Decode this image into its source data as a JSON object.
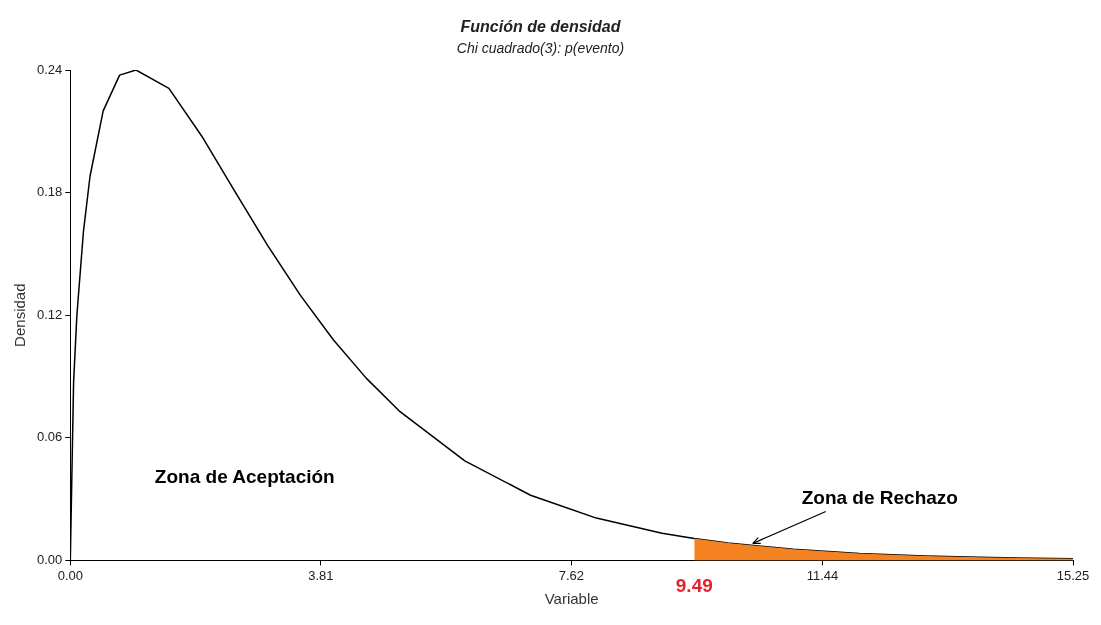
{
  "chart_data": {
    "type": "line",
    "title": "Función de densidad",
    "subtitle": "Chi cuadrado(3): p(evento)",
    "xlabel": "Variable",
    "ylabel": "Densidad",
    "xlim": [
      0,
      15.25
    ],
    "xticks": [
      {
        "value": 0,
        "label": "0.00"
      },
      3.81,
      7.62,
      11.44,
      15.25
    ],
    "ylim": [
      0,
      0.24
    ],
    "yticks": [
      {
        "value": 0,
        "label": "0.00"
      },
      0.06,
      0.12,
      0.18,
      0.24
    ],
    "grid": false,
    "legend": false,
    "marker": "none",
    "series": [
      {
        "type": "area",
        "color": "#f58220",
        "x": [
          9.49,
          10,
          11,
          12,
          13,
          14,
          15.25
        ],
        "values": [
          0.0107,
          0.0085,
          0.0054,
          0.0034,
          0.0022,
          0.0014,
          0.0008
        ]
      },
      {
        "color": "#000000",
        "x": [
          0,
          0.05,
          0.1,
          0.2,
          0.3,
          0.5,
          0.75,
          1,
          1.5,
          2,
          2.5,
          3,
          3.5,
          4,
          4.5,
          5,
          6,
          7,
          8,
          9,
          9.49,
          10,
          11,
          12,
          13,
          14,
          15.25
        ],
        "values": [
          0,
          0.087,
          0.12,
          0.161,
          0.188,
          0.22,
          0.2375,
          0.24,
          0.231,
          0.2076,
          0.1807,
          0.1542,
          0.1297,
          0.108,
          0.0892,
          0.0732,
          0.0487,
          0.0319,
          0.0207,
          0.0133,
          0.0107,
          0.0085,
          0.0054,
          0.0034,
          0.0022,
          0.0014,
          0.0008
        ]
      }
    ],
    "annotations": [
      "Zona de Aceptación",
      {
        "text": "Zona de Rechazo",
        "x": 10.38,
        "y": 0.0083
      },
      {
        "text": "9.49",
        "x": 9.49,
        "y": 0
      }
    ]
  }
}
